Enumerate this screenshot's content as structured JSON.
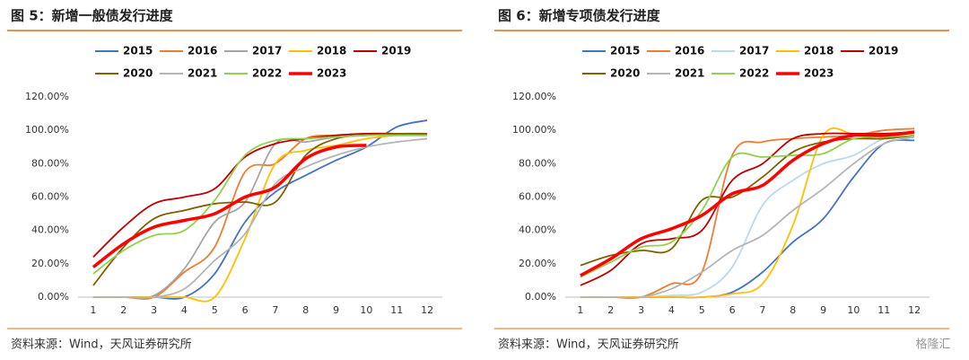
{
  "chart_data": [
    {
      "type": "line",
      "title": "图 5：新增一般债发行进度",
      "source": "资料来源：Wind，天风证券研究所",
      "x": [
        1,
        2,
        3,
        4,
        5,
        6,
        7,
        8,
        9,
        10,
        11,
        12
      ],
      "xlim": [
        0.5,
        12.5
      ],
      "xticks": [
        1,
        2,
        3,
        4,
        5,
        6,
        7,
        8,
        9,
        10,
        11,
        12
      ],
      "ylim": [
        0,
        120
      ],
      "yticks": [
        {
          "value": 0,
          "label": "0.00%"
        },
        {
          "value": 20,
          "label": "20.00%"
        },
        {
          "value": 40,
          "label": "40.00%"
        },
        {
          "value": 60,
          "label": "60.00%"
        },
        {
          "value": 80,
          "label": "80.00%"
        },
        {
          "value": 100,
          "label": "100.00%"
        },
        {
          "value": 120,
          "label": "120.00%"
        }
      ],
      "grid": false,
      "legend": "top",
      "series": [
        {
          "name": "2015",
          "color": "#4472c4",
          "values": [
            0,
            0,
            0,
            0,
            14,
            45,
            63,
            73,
            82,
            90,
            102,
            106
          ]
        },
        {
          "name": "2016",
          "color": "#ed7d31",
          "values": [
            0,
            0,
            0,
            15,
            30,
            75,
            80,
            95,
            97,
            98,
            98,
            98
          ]
        },
        {
          "name": "2017",
          "color": "#a5a5a5",
          "values": [
            0,
            0,
            1,
            17,
            45,
            57,
            92,
            93,
            96,
            97,
            97,
            97
          ]
        },
        {
          "name": "2018",
          "color": "#ffc000",
          "values": [
            0,
            0,
            0,
            0,
            0,
            35,
            80,
            88,
            91,
            95,
            97,
            98
          ]
        },
        {
          "name": "2019",
          "color": "#c00000",
          "values": [
            24,
            42,
            56,
            60,
            65,
            84,
            92,
            95,
            97,
            98,
            98,
            98
          ]
        },
        {
          "name": "2020",
          "color": "#806000",
          "values": [
            7,
            30,
            47,
            52,
            56,
            57,
            57,
            85,
            95,
            97,
            98,
            98
          ]
        },
        {
          "name": "2021",
          "color": "#b4b4b4",
          "values": [
            0,
            0,
            0,
            5,
            22,
            38,
            68,
            78,
            85,
            90,
            93,
            95
          ]
        },
        {
          "name": "2022",
          "color": "#92d050",
          "values": [
            14,
            28,
            37,
            40,
            58,
            85,
            94,
            95,
            96,
            97,
            97,
            97
          ]
        },
        {
          "name": "2023",
          "color": "#ff0000",
          "values": [
            18,
            32,
            42,
            46,
            50,
            60,
            66,
            83,
            90,
            91,
            null,
            null
          ]
        }
      ]
    },
    {
      "type": "line",
      "title": "图 6：新增专项债发行进度",
      "source": "资料来源：Wind，天风证券研究所",
      "x": [
        1,
        2,
        3,
        4,
        5,
        6,
        7,
        8,
        9,
        10,
        11,
        12
      ],
      "xlim": [
        0.5,
        12.5
      ],
      "xticks": [
        1,
        2,
        3,
        4,
        5,
        6,
        7,
        8,
        9,
        10,
        11,
        12
      ],
      "ylim": [
        0,
        120
      ],
      "yticks": [
        {
          "value": 0,
          "label": "0.00%"
        },
        {
          "value": 20,
          "label": "20.00%"
        },
        {
          "value": 40,
          "label": "40.00%"
        },
        {
          "value": 60,
          "label": "60.00%"
        },
        {
          "value": 80,
          "label": "80.00%"
        },
        {
          "value": 100,
          "label": "100.00%"
        },
        {
          "value": 120,
          "label": "120.00%"
        }
      ],
      "grid": false,
      "legend": "top",
      "series": [
        {
          "name": "2015",
          "color": "#4472c4",
          "values": [
            0,
            0,
            0,
            0,
            0,
            3,
            15,
            33,
            47,
            72,
            92,
            94
          ]
        },
        {
          "name": "2016",
          "color": "#ed7d31",
          "values": [
            0,
            0,
            0,
            8,
            15,
            85,
            93,
            95,
            96,
            97,
            100,
            101
          ]
        },
        {
          "name": "2017",
          "color": "#bdd7ee",
          "values": [
            0,
            0,
            0,
            1,
            3,
            18,
            55,
            70,
            80,
            85,
            95,
            96
          ]
        },
        {
          "name": "2018",
          "color": "#ffc000",
          "values": [
            0,
            0,
            0,
            0,
            0,
            2,
            8,
            43,
            97,
            98,
            98,
            98
          ]
        },
        {
          "name": "2019",
          "color": "#c00000",
          "values": [
            7,
            16,
            32,
            35,
            40,
            70,
            80,
            95,
            98,
            98,
            98,
            99
          ]
        },
        {
          "name": "2020",
          "color": "#806000",
          "values": [
            19,
            25,
            28,
            29,
            58,
            60,
            72,
            87,
            93,
            95,
            95,
            97
          ]
        },
        {
          "name": "2021",
          "color": "#b4b4b4",
          "values": [
            0,
            0,
            0,
            5,
            15,
            28,
            37,
            52,
            65,
            80,
            92,
            96
          ]
        },
        {
          "name": "2022",
          "color": "#92d050",
          "values": [
            12,
            21,
            30,
            33,
            52,
            84,
            84,
            85,
            86,
            95,
            96,
            97
          ]
        },
        {
          "name": "2023",
          "color": "#ff0000",
          "values": [
            13,
            23,
            35,
            41,
            49,
            62,
            67,
            82,
            92,
            97,
            97,
            99
          ]
        }
      ]
    }
  ],
  "watermark": "格隆汇"
}
